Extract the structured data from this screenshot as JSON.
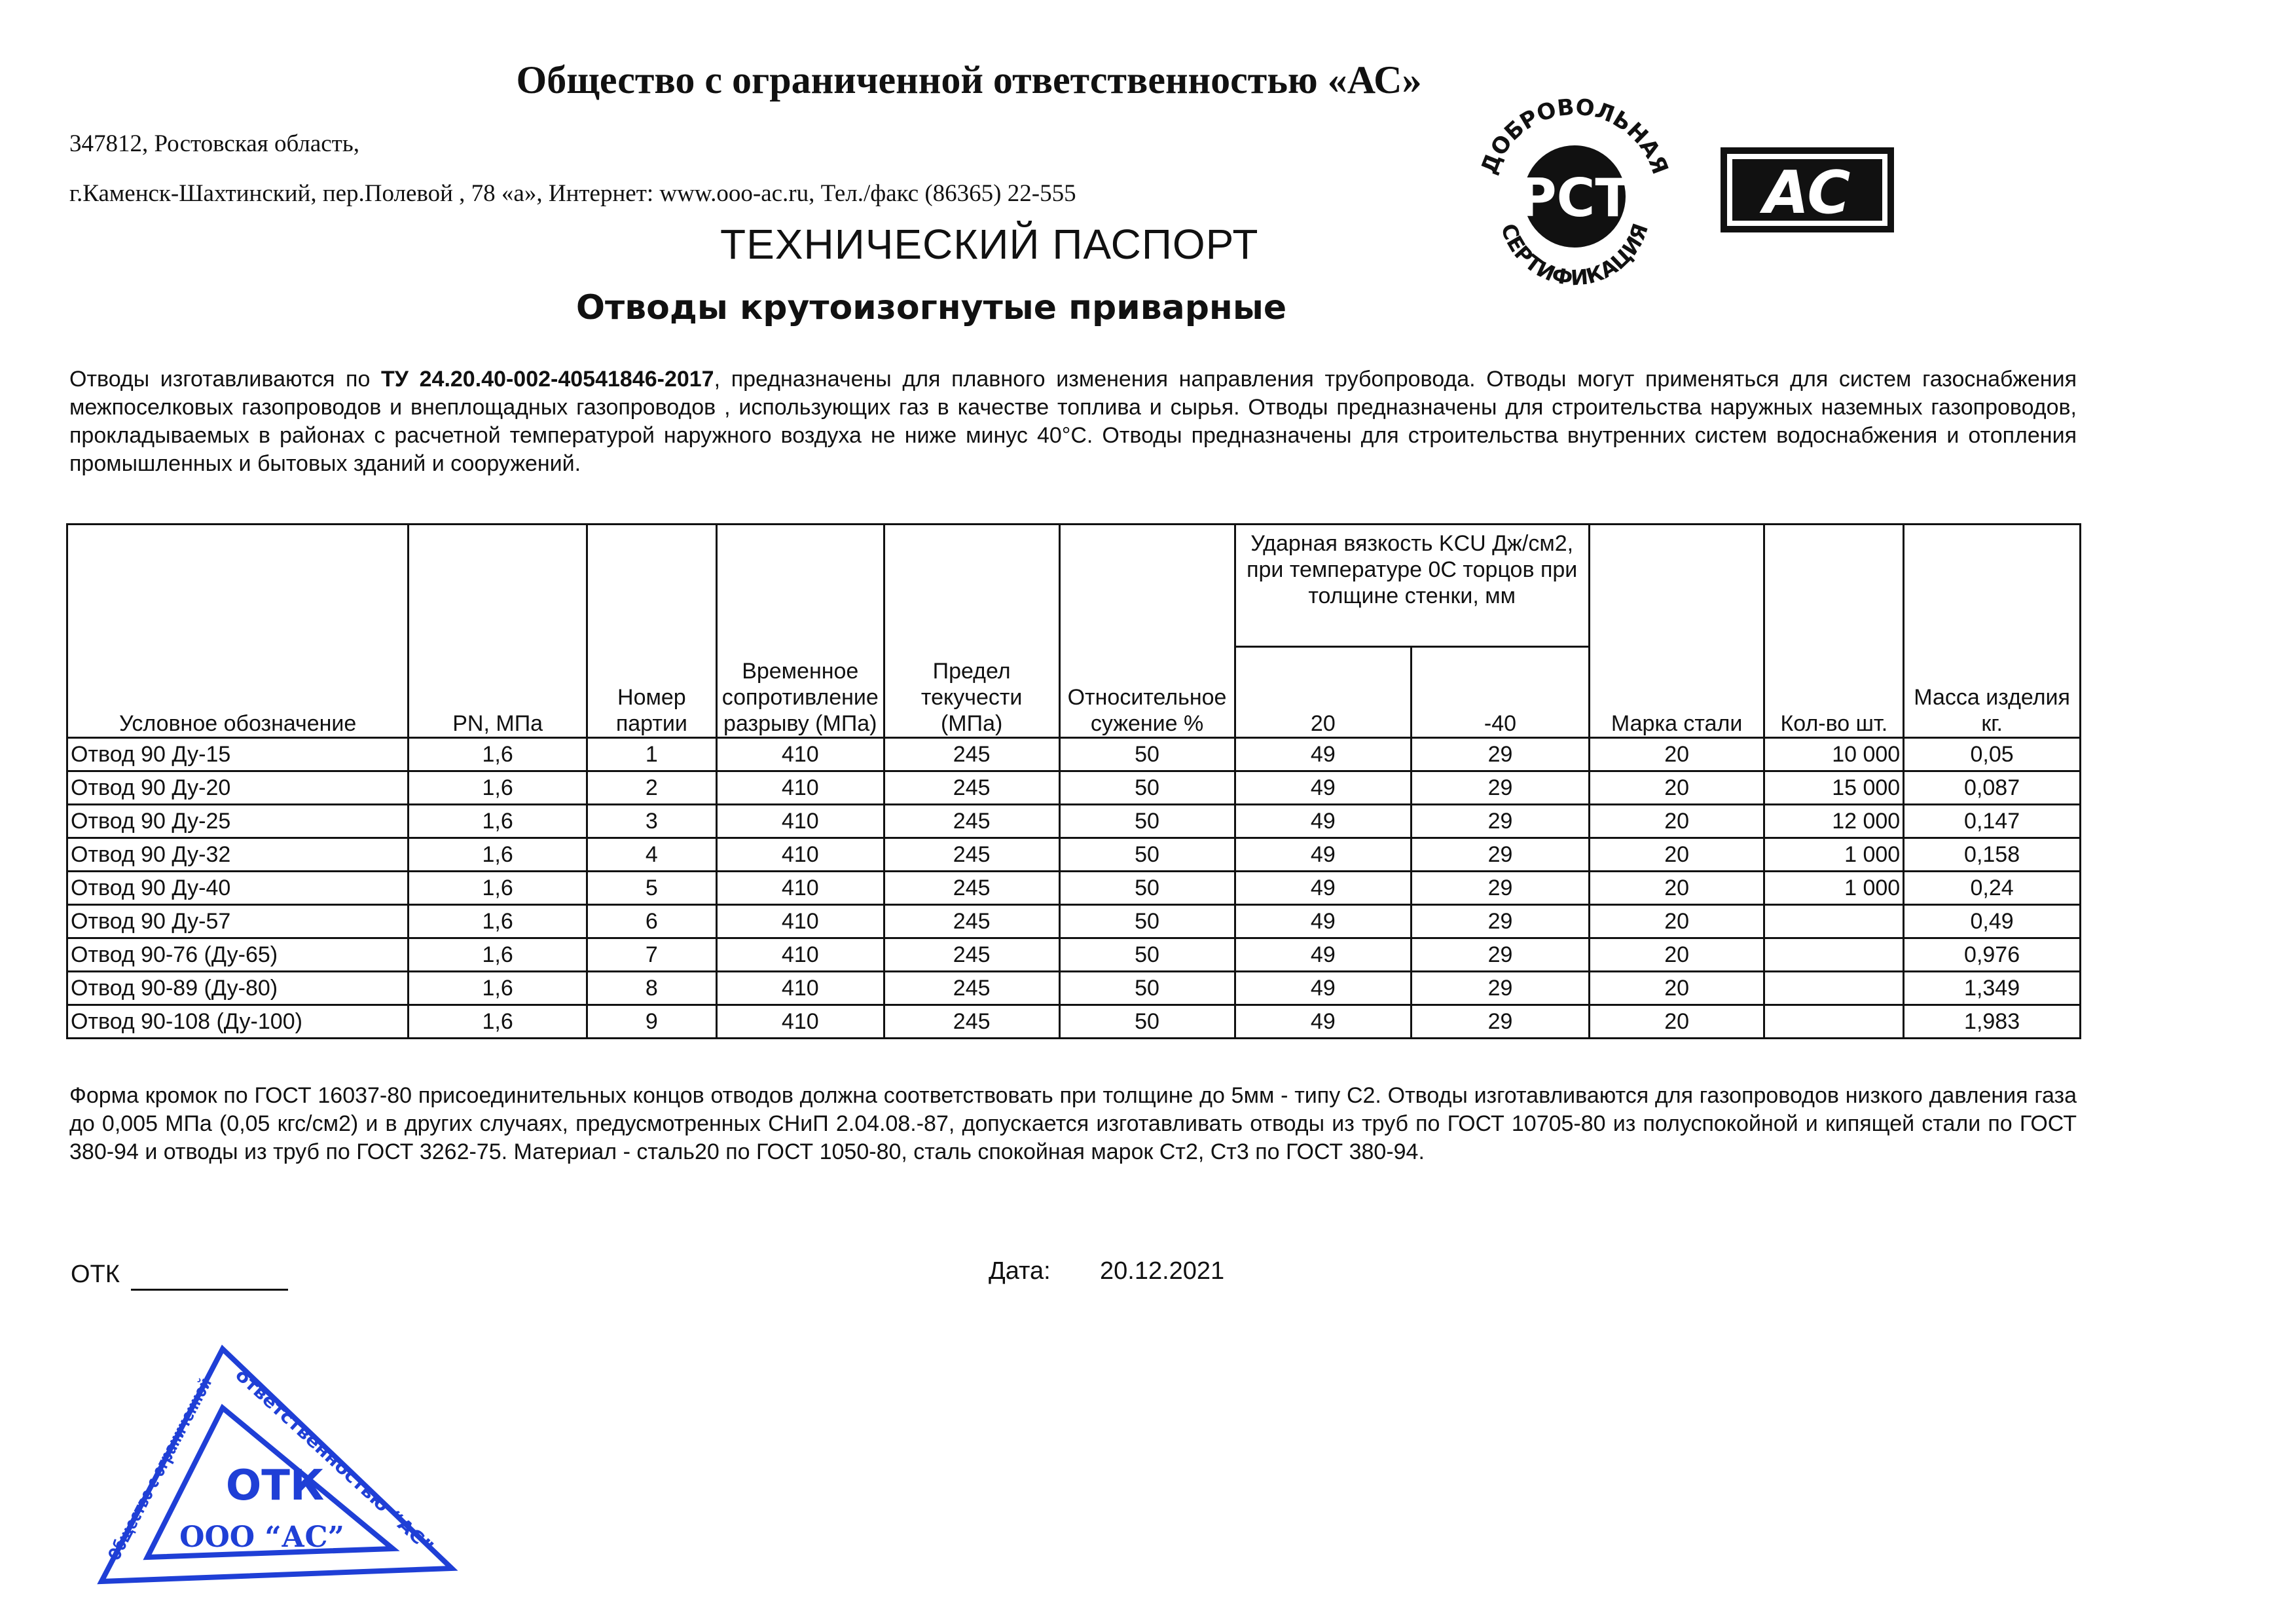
{
  "header": {
    "org": "Общество с ограниченной ответственностью «АС»",
    "address_line1": "347812, Ростовская область,",
    "address_line2": "г.Каменск-Шахтинский,  пер.Полевой , 78 «а», Интернет: www.ooo-ac.ru, Тел./факс (86365) 22-555",
    "doc_title": "ТЕХНИЧЕСКИЙ ПАСПОРТ",
    "subtitle": "Отводы крутоизогнутые приварные"
  },
  "logos": {
    "rst_top": "ДОБРОВОЛЬНАЯ",
    "rst_bottom": "СЕРТИФИКАЦИЯ",
    "rst_mark": "РСТ",
    "ac_mark": "AC"
  },
  "intro": {
    "pre": "Отводы изготавливаются по ",
    "tu": "ТУ 24.20.40-002-40541846-2017",
    "post": ", предназначены для плавного изменения направления трубопровода. Отводы могут применяться для систем газоснабжения межпоселковых газопроводов и внеплощадных газопроводов , использующих газ в качестве топлива и сырья.  Отводы предназначены для строительства наружных наземных газопроводов, прокладываемых в районах с расчетной температурой наружного воздуха не ниже минус 40°С. Отводы предназначены для строительства  внутренних систем водоснабжения и отопления промышленных и бытовых зданий и сооружений."
  },
  "table": {
    "headers": [
      "Условное обозначение",
      "PN, МПа",
      "Номер партии",
      "Временное сопротивление разрыву (МПа)",
      "Предел текучести (МПа)",
      "Относительное сужение %",
      "Ударная вязкость KCU Дж/см2, при температуре 0С торцов при толщине стенки, мм",
      "Марка стали",
      "Кол-во шт.",
      "Масса изделия кг."
    ],
    "subheaders": [
      "20",
      "-40"
    ],
    "rows": [
      [
        "Отвод 90 Ду-15",
        "1,6",
        "1",
        "410",
        "245",
        "50",
        "49",
        "29",
        "20",
        "10 000",
        "0,05"
      ],
      [
        "Отвод 90 Ду-20",
        "1,6",
        "2",
        "410",
        "245",
        "50",
        "49",
        "29",
        "20",
        "15 000",
        "0,087"
      ],
      [
        "Отвод 90 Ду-25",
        "1,6",
        "3",
        "410",
        "245",
        "50",
        "49",
        "29",
        "20",
        "12 000",
        "0,147"
      ],
      [
        "Отвод 90 Ду-32",
        "1,6",
        "4",
        "410",
        "245",
        "50",
        "49",
        "29",
        "20",
        "1 000",
        "0,158"
      ],
      [
        "Отвод 90 Ду-40",
        "1,6",
        "5",
        "410",
        "245",
        "50",
        "49",
        "29",
        "20",
        "1 000",
        "0,24"
      ],
      [
        "Отвод 90 Ду-57",
        "1,6",
        "6",
        "410",
        "245",
        "50",
        "49",
        "29",
        "20",
        "",
        "0,49"
      ],
      [
        "Отвод 90-76 (Ду-65)",
        "1,6",
        "7",
        "410",
        "245",
        "50",
        "49",
        "29",
        "20",
        "",
        "0,976"
      ],
      [
        "Отвод 90-89 (Ду-80)",
        "1,6",
        "8",
        "410",
        "245",
        "50",
        "49",
        "29",
        "20",
        "",
        "1,349"
      ],
      [
        "Отвод 90-108 (Ду-100)",
        "1,6",
        "9",
        "410",
        "245",
        "50",
        "49",
        "29",
        "20",
        "",
        "1,983"
      ]
    ]
  },
  "outro": "Форма кромок по ГОСТ 16037-80 присоединительных концов отводов должна соответствовать при толщине до 5мм - типу С2. Отводы изготавливаются для газопроводов низкого давления газа до 0,005 МПа (0,05 кгс/см2) и в других случаях, предусмотренных СНиП 2.04.08.-87, допускается изготавливать отводы из труб по ГОСТ 10705-80 из полуспокойной и кипящей стали по ГОСТ 380-94 и отводы из труб по ГОСТ 3262-75. Материал - сталь20 по ГОСТ 1050-80, сталь спокойная марок Ст2, Ст3 по ГОСТ 380-94.",
  "footer": {
    "otk_label": "ОТК",
    "date_label": "Дата:",
    "date_value": "20.12.2021"
  },
  "stamp": {
    "center": "ОТК",
    "bottom": "ООО “АС”",
    "ring": "Общество с ограниченной ответственностью “АС”",
    "color": "#1f3fd6"
  }
}
